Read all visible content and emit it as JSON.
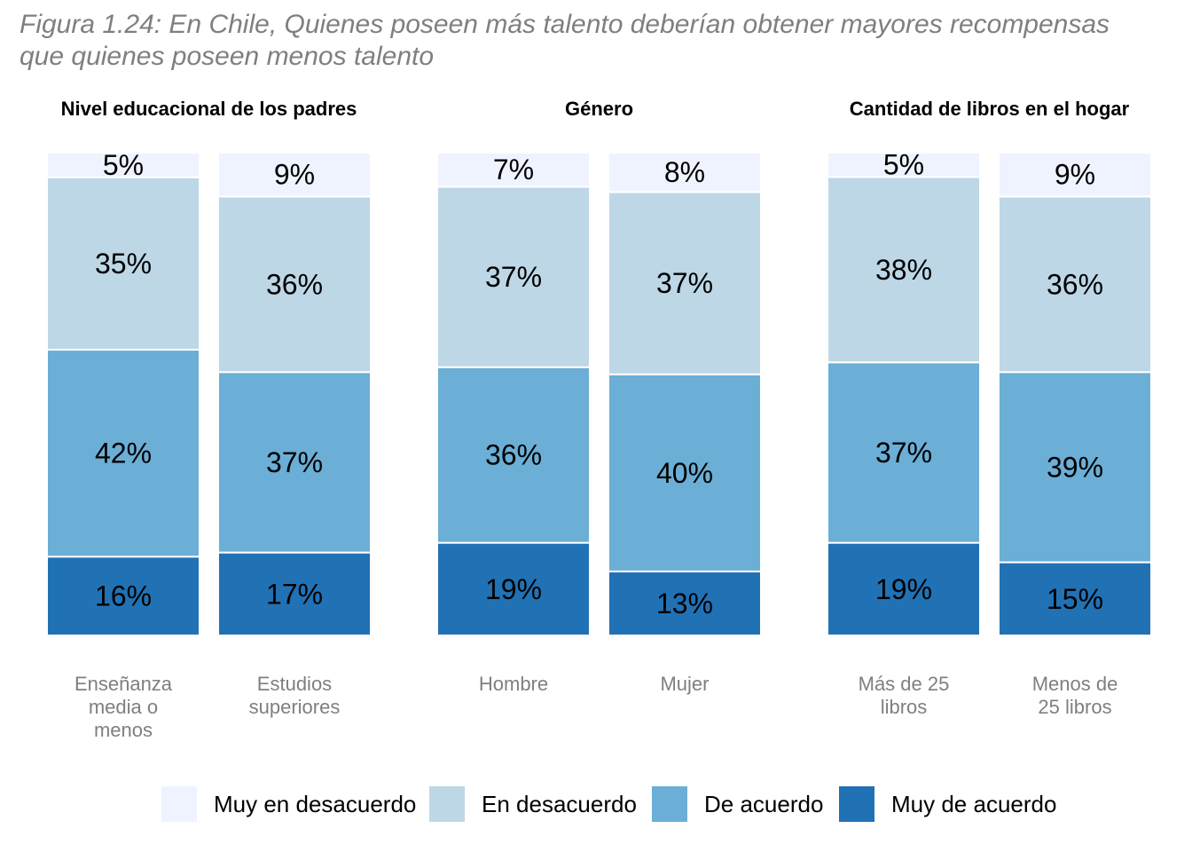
{
  "title": {
    "line1": "Figura 1.24: En Chile, Quienes poseen más talento deberían obtener mayores recompensas",
    "line2": "que quienes poseen menos talento"
  },
  "chart_data": {
    "type": "bar",
    "stacked": true,
    "percent": true,
    "ylim": [
      0,
      100
    ],
    "grid": false,
    "legend_position": "bottom",
    "colors": {
      "Muy en desacuerdo": "#eff3ff",
      "En desacuerdo": "#bdd7e7",
      "De acuerdo": "#6baed6",
      "Muy de acuerdo": "#2171b5"
    },
    "legend": [
      "Muy en desacuerdo",
      "En desacuerdo",
      "De acuerdo",
      "Muy de acuerdo"
    ],
    "panels": [
      {
        "title": "Nivel educacional de los padres",
        "categories": [
          {
            "label": [
              "Enseñanza",
              "media o",
              "menos"
            ],
            "values": [
              16,
              42,
              35,
              5
            ]
          },
          {
            "label": [
              "Estudios",
              "superiores"
            ],
            "values": [
              17,
              37,
              36,
              9
            ]
          }
        ]
      },
      {
        "title": "Género",
        "categories": [
          {
            "label": [
              "Hombre"
            ],
            "values": [
              19,
              36,
              37,
              7
            ]
          },
          {
            "label": [
              "Mujer"
            ],
            "values": [
              13,
              40,
              37,
              8
            ]
          }
        ]
      },
      {
        "title": "Cantidad de libros en el hogar",
        "categories": [
          {
            "label": [
              "Más de 25",
              "libros"
            ],
            "values": [
              19,
              37,
              38,
              5
            ]
          },
          {
            "label": [
              "Menos de",
              "25 libros"
            ],
            "values": [
              15,
              39,
              36,
              9
            ]
          }
        ]
      }
    ],
    "series_order_bottom_to_top": [
      "Muy de acuerdo",
      "De acuerdo",
      "En desacuerdo",
      "Muy en desacuerdo"
    ]
  }
}
